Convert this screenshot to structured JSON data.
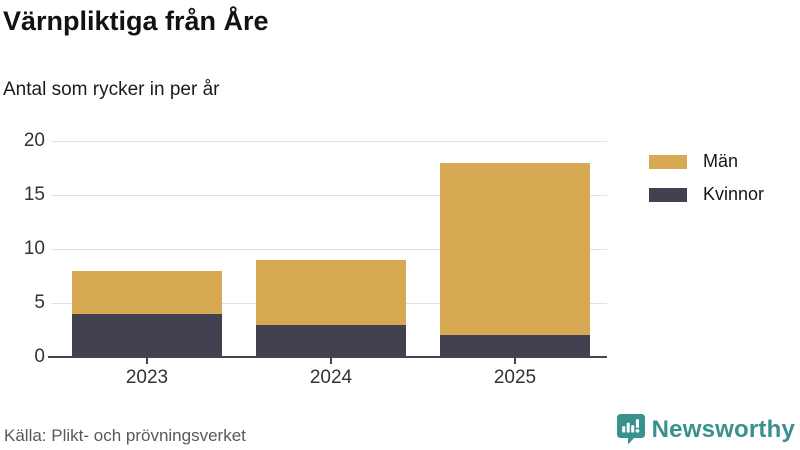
{
  "header": {
    "title": "Värnpliktiga från Åre",
    "subtitle": "Antal som rycker in per år"
  },
  "chart_data": {
    "type": "bar",
    "stacked": true,
    "title": "Värnpliktiga från Åre",
    "subtitle": "Antal som rycker in per år",
    "categories": [
      "2023",
      "2024",
      "2025"
    ],
    "series": [
      {
        "name": "Män",
        "color": "#d8a953",
        "values": [
          4,
          6,
          16
        ]
      },
      {
        "name": "Kvinnor",
        "color": "#434050",
        "values": [
          4,
          3,
          2
        ]
      }
    ],
    "stack_order_top_to_bottom": [
      "Män",
      "Kvinnor"
    ],
    "totals": [
      8,
      9,
      18
    ],
    "xlabel": "",
    "ylabel": "",
    "ylim": [
      0,
      20
    ],
    "yticks": [
      0,
      5,
      10,
      15,
      20
    ],
    "grid": true,
    "legend_position": "right"
  },
  "footer": {
    "source": "Källa: Plikt- och prövningsverket",
    "brand": "Newsworthy"
  },
  "colors": {
    "men": "#d8a953",
    "women": "#434050",
    "axis": "#47444f",
    "gridline": "#e2e2e2",
    "tick_text": "#333333",
    "source_text": "#595959",
    "brand_teal": "#38918d"
  }
}
